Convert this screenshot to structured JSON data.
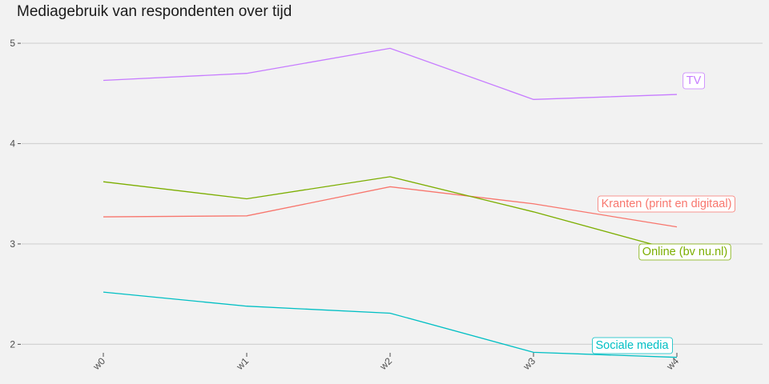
{
  "chart_data": {
    "type": "line",
    "title": "Mediagebruik van respondenten over tijd",
    "xlabel": "",
    "ylabel": "",
    "categories": [
      "w0",
      "w1",
      "w2",
      "w3",
      "w4"
    ],
    "ylim": [
      1.7,
      5.2
    ],
    "yticks": [
      2,
      3,
      4,
      5
    ],
    "grid": true,
    "legend": "direct labels at line ends",
    "series": [
      {
        "name": "TV",
        "color": "#C77CFF",
        "values": [
          4.63,
          4.7,
          4.95,
          4.44,
          4.49
        ]
      },
      {
        "name": "Kranten (print en digitaal)",
        "color": "#F8766D",
        "values": [
          3.27,
          3.28,
          3.57,
          3.4,
          3.17
        ]
      },
      {
        "name": "Online (bv nu.nl)",
        "color": "#7CAE00",
        "values": [
          3.62,
          3.45,
          3.67,
          3.32,
          2.93
        ]
      },
      {
        "name": "Sociale media",
        "color": "#00BFC4",
        "values": [
          2.52,
          2.38,
          2.31,
          1.92,
          1.87
        ]
      }
    ]
  }
}
